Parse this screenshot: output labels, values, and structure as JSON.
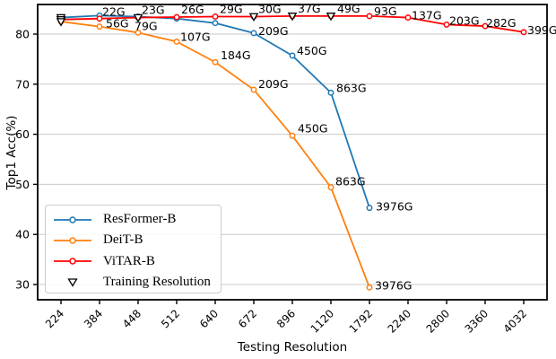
{
  "axes": {
    "xlabel": "Testing Resolution",
    "ylabel": "Top1 Acc(%)",
    "yticks": [
      30,
      40,
      50,
      60,
      70,
      80
    ]
  },
  "chart_data": {
    "type": "line",
    "title": "",
    "categories": [
      "224",
      "384",
      "448",
      "512",
      "640",
      "672",
      "896",
      "1120",
      "1792",
      "2240",
      "2800",
      "3360",
      "4032"
    ],
    "ylim": [
      27,
      86
    ],
    "grid": "horizontal",
    "legend_position": "lower left",
    "series": [
      {
        "name": "ResFormer-B",
        "color": "#1f77b4",
        "values": [
          83.3,
          83.7,
          83.5,
          83.1,
          82.2,
          80.2,
          75.7,
          68.3,
          45.3
        ],
        "annotations": [
          {
            "cat": 5,
            "text": "209G",
            "dx": 5,
            "dy": 2
          },
          {
            "cat": 6,
            "text": "450G",
            "dx": 5,
            "dy": -1
          },
          {
            "cat": 7,
            "text": "863G",
            "dx": 6,
            "dy": -1
          },
          {
            "cat": 8,
            "text": "3976G",
            "dx": 7,
            "dy": 3
          }
        ]
      },
      {
        "name": "DeiT-B",
        "color": "#ff7f0e",
        "values": [
          82.5,
          81.5,
          80.3,
          78.5,
          74.4,
          68.9,
          59.7,
          49.4,
          29.4
        ],
        "annotations": [
          {
            "cat": 1,
            "text": "56G",
            "dx": 7,
            "dy": 1
          },
          {
            "cat": 2,
            "text": "79G",
            "dx": -4,
            "dy": -3
          },
          {
            "cat": 3,
            "text": "107G",
            "dx": 4,
            "dy": -1
          },
          {
            "cat": 4,
            "text": "184G",
            "dx": 6,
            "dy": -3
          },
          {
            "cat": 5,
            "text": "209G",
            "dx": 5,
            "dy": -2
          },
          {
            "cat": 6,
            "text": "450G",
            "dx": 6,
            "dy": -4
          },
          {
            "cat": 7,
            "text": "863G",
            "dx": 5,
            "dy": -2
          },
          {
            "cat": 8,
            "text": "3976G",
            "dx": 6,
            "dy": 2
          }
        ]
      },
      {
        "name": "ViTAR-B",
        "color": "#ff0000",
        "values": [
          82.9,
          83.1,
          83.3,
          83.4,
          83.5,
          83.5,
          83.6,
          83.6,
          83.6,
          83.3,
          81.9,
          81.6,
          80.4
        ],
        "annotations": [
          {
            "cat": 1,
            "text": "22G",
            "dx": 3,
            "dy": -3
          },
          {
            "cat": 2,
            "text": "23G",
            "dx": 4,
            "dy": -4
          },
          {
            "cat": 3,
            "text": "26G",
            "dx": 5,
            "dy": -4
          },
          {
            "cat": 4,
            "text": "29G",
            "dx": 5,
            "dy": -4
          },
          {
            "cat": 5,
            "text": "30G",
            "dx": 5,
            "dy": -4
          },
          {
            "cat": 6,
            "text": "37G",
            "dx": 6,
            "dy": -4
          },
          {
            "cat": 7,
            "text": "49G",
            "dx": 7,
            "dy": -4
          },
          {
            "cat": 8,
            "text": "93G",
            "dx": 5,
            "dy": -1
          },
          {
            "cat": 9,
            "text": "137G",
            "dx": 4,
            "dy": 2
          },
          {
            "cat": 10,
            "text": "203G",
            "dx": 3,
            "dy": 0
          },
          {
            "cat": 11,
            "text": "282G",
            "dx": 1,
            "dy": 1
          },
          {
            "cat": 12,
            "text": "399G",
            "dx": 4,
            "dy": 2
          }
        ]
      }
    ],
    "training_markers": {
      "label": "Training Resolution",
      "marker": "open-triangle-down",
      "color": "#000000",
      "points": [
        {
          "cat": 0,
          "value": 83.3
        },
        {
          "cat": 0,
          "value": 82.9
        },
        {
          "cat": 0,
          "value": 82.5
        },
        {
          "cat": 2,
          "value": 83.3
        },
        {
          "cat": 5,
          "value": 83.5
        },
        {
          "cat": 6,
          "value": 83.6
        },
        {
          "cat": 7,
          "value": 83.6
        }
      ]
    },
    "style": {
      "grid_color": "#c8c8c8",
      "spine_color": "#000000",
      "tick_label_color": "#000000",
      "annotation_color": "#000000"
    }
  }
}
